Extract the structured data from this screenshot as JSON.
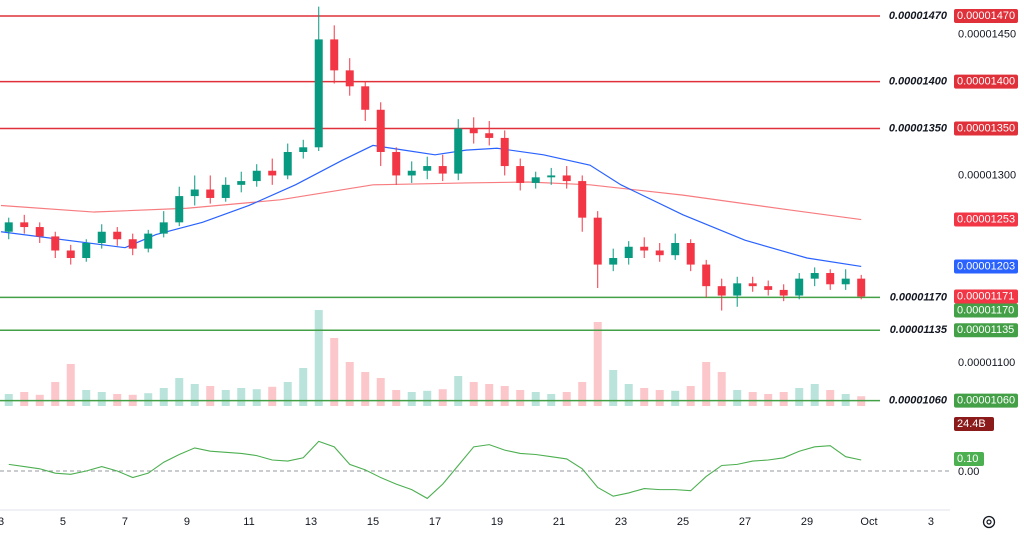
{
  "chart_data": {
    "type": "candlestick",
    "up_color": "#089981",
    "down_color": "#f23645",
    "xlim": [
      3,
      33.55
    ],
    "xticks": [
      3,
      5,
      7,
      9,
      11,
      13,
      15,
      17,
      19,
      21,
      23,
      25,
      27,
      29,
      {
        "value": 31,
        "label": "Oct"
      },
      {
        "value": 33,
        "label": "3"
      }
    ],
    "ylim": [
      1.05e-05,
      1.487e-05
    ],
    "yticks": [
      {
        "value": 1.45e-05,
        "label": "0.00001450"
      },
      {
        "value": 1.3e-05,
        "label": "0.00001300"
      },
      {
        "value": 1.1e-05,
        "label": "0.00001100"
      }
    ],
    "grid": false,
    "x": [
      3.25,
      3.75,
      4.25,
      4.75,
      5.25,
      5.75,
      6.25,
      6.75,
      7.25,
      7.75,
      8.25,
      8.75,
      9.25,
      9.75,
      10.25,
      10.75,
      11.25,
      11.75,
      12.25,
      12.75,
      13.25,
      13.75,
      14.25,
      14.75,
      15.25,
      15.75,
      16.25,
      16.75,
      17.25,
      17.75,
      18.25,
      18.75,
      19.25,
      19.75,
      20.25,
      20.75,
      21.25,
      21.75,
      22.25,
      22.75,
      23.25,
      23.75,
      24.25,
      24.75,
      25.25,
      25.75,
      26.25,
      26.75,
      27.25,
      27.75,
      28.25,
      28.75,
      29.25,
      29.75,
      30.25,
      30.75
    ],
    "open": [
      1.24e-05,
      1.25e-05,
      1.245e-05,
      1.235e-05,
      1.22e-05,
      1.212e-05,
      1.228e-05,
      1.24e-05,
      1.232e-05,
      1.222e-05,
      1.238e-05,
      1.25e-05,
      1.278e-05,
      1.285e-05,
      1.276e-05,
      1.29e-05,
      1.294e-05,
      1.305e-05,
      1.3e-05,
      1.325e-05,
      1.33e-05,
      1.445e-05,
      1.412e-05,
      1.395e-05,
      1.37e-05,
      1.325e-05,
      1.3e-05,
      1.305e-05,
      1.31e-05,
      1.302e-05,
      1.35e-05,
      1.345e-05,
      1.34e-05,
      1.31e-05,
      1.292e-05,
      1.298e-05,
      1.3e-05,
      1.294e-05,
      1.255e-05,
      1.205e-05,
      1.212e-05,
      1.224e-05,
      1.22e-05,
      1.215e-05,
      1.228e-05,
      1.205e-05,
      1.182e-05,
      1.172e-05,
      1.185e-05,
      1.182e-05,
      1.178e-05,
      1.172e-05,
      1.19e-05,
      1.196e-05,
      1.184e-05,
      1.19e-05
    ],
    "close": [
      1.25e-05,
      1.245e-05,
      1.235e-05,
      1.22e-05,
      1.212e-05,
      1.228e-05,
      1.24e-05,
      1.232e-05,
      1.222e-05,
      1.238e-05,
      1.25e-05,
      1.278e-05,
      1.285e-05,
      1.276e-05,
      1.29e-05,
      1.294e-05,
      1.305e-05,
      1.3e-05,
      1.325e-05,
      1.33e-05,
      1.445e-05,
      1.412e-05,
      1.395e-05,
      1.37e-05,
      1.325e-05,
      1.3e-05,
      1.305e-05,
      1.31e-05,
      1.302e-05,
      1.35e-05,
      1.345e-05,
      1.34e-05,
      1.31e-05,
      1.292e-05,
      1.298e-05,
      1.3e-05,
      1.294e-05,
      1.255e-05,
      1.205e-05,
      1.212e-05,
      1.224e-05,
      1.22e-05,
      1.215e-05,
      1.228e-05,
      1.205e-05,
      1.182e-05,
      1.172e-05,
      1.185e-05,
      1.182e-05,
      1.178e-05,
      1.172e-05,
      1.19e-05,
      1.196e-05,
      1.184e-05,
      1.19e-05,
      1.171e-05
    ],
    "high": [
      1.255e-05,
      1.258e-05,
      1.25e-05,
      1.24e-05,
      1.226e-05,
      1.232e-05,
      1.248e-05,
      1.245e-05,
      1.238e-05,
      1.242e-05,
      1.262e-05,
      1.288e-05,
      1.3e-05,
      1.3e-05,
      1.298e-05,
      1.304e-05,
      1.312e-05,
      1.318e-05,
      1.334e-05,
      1.338e-05,
      1.48e-05,
      1.46e-05,
      1.425e-05,
      1.4e-05,
      1.378e-05,
      1.33e-05,
      1.315e-05,
      1.32e-05,
      1.322e-05,
      1.36e-05,
      1.362e-05,
      1.358e-05,
      1.348e-05,
      1.318e-05,
      1.304e-05,
      1.308e-05,
      1.31e-05,
      1.3e-05,
      1.262e-05,
      1.222e-05,
      1.23e-05,
      1.234e-05,
      1.228e-05,
      1.238e-05,
      1.232e-05,
      1.21e-05,
      1.19e-05,
      1.192e-05,
      1.192e-05,
      1.188e-05,
      1.184e-05,
      1.196e-05,
      1.202e-05,
      1.2e-05,
      1.2e-05,
      1.194e-05
    ],
    "low": [
      1.232e-05,
      1.238e-05,
      1.228e-05,
      1.212e-05,
      1.205e-05,
      1.208e-05,
      1.222e-05,
      1.225e-05,
      1.215e-05,
      1.218e-05,
      1.234e-05,
      1.246e-05,
      1.268e-05,
      1.27e-05,
      1.272e-05,
      1.282e-05,
      1.288e-05,
      1.29e-05,
      1.296e-05,
      1.318e-05,
      1.326e-05,
      1.398e-05,
      1.385e-05,
      1.358e-05,
      1.31e-05,
      1.29e-05,
      1.292e-05,
      1.296e-05,
      1.294e-05,
      1.295e-05,
      1.334e-05,
      1.332e-05,
      1.3e-05,
      1.284e-05,
      1.286e-05,
      1.29e-05,
      1.286e-05,
      1.24e-05,
      1.18e-05,
      1.198e-05,
      1.205e-05,
      1.212e-05,
      1.208e-05,
      1.21e-05,
      1.198e-05,
      1.17e-05,
      1.156e-05,
      1.16e-05,
      1.176e-05,
      1.172e-05,
      1.166e-05,
      1.168e-05,
      1.182e-05,
      1.178e-05,
      1.178e-05,
      1.168e-05
    ],
    "last_label": "0.00001171",
    "levels": [
      {
        "value": 1.47e-05,
        "label": "0.00001470",
        "color": "#e0303a"
      },
      {
        "value": 1.4e-05,
        "label": "0.00001400",
        "color": "#e0303a"
      },
      {
        "value": 1.35e-05,
        "label": "0.00001350",
        "color": "#e0303a"
      },
      {
        "value": 1.17e-05,
        "label": "0.00001170",
        "color": "#43a047"
      },
      {
        "value": 1.135e-05,
        "label": "0.00001135",
        "color": "#43a047"
      },
      {
        "value": 1.06e-05,
        "label": "0.00001060",
        "color": "#43a047"
      }
    ],
    "overlays": [
      {
        "color": "#f77c80",
        "badge_color": "#f23645",
        "last_label": "0.00001253",
        "x": [
          3,
          6,
          9,
          12,
          15,
          18,
          20,
          22,
          25,
          28.5,
          30.75
        ],
        "values": [
          1.268e-05,
          1.261e-05,
          1.265e-05,
          1.274e-05,
          1.29e-05,
          1.292e-05,
          1.293e-05,
          1.29e-05,
          1.279e-05,
          1.263e-05,
          1.253e-05
        ]
      },
      {
        "color": "#2962ff",
        "badge_color": "#2962ff",
        "last_label": "0.00001203",
        "x": [
          3,
          7,
          8,
          9.5,
          11,
          12.5,
          14,
          15,
          16,
          17,
          18,
          19,
          20.5,
          22,
          23,
          25,
          27,
          29,
          30.75
        ],
        "values": [
          1.24e-05,
          1.223e-05,
          1.237e-05,
          1.25e-05,
          1.268e-05,
          1.29e-05,
          1.316e-05,
          1.332e-05,
          1.327e-05,
          1.322e-05,
          1.327e-05,
          1.329e-05,
          1.322e-05,
          1.311e-05,
          1.29e-05,
          1.258e-05,
          1.231e-05,
          1.212e-05,
          1.203e-05
        ]
      }
    ],
    "volume": {
      "ylim": [
        0,
        250
      ],
      "up_color": "rgba(8,153,129,0.28)",
      "down_color": "rgba(242,54,69,0.28)",
      "badge_color": "#8b1a1a",
      "last_label": "24.4B",
      "values": [
        30,
        35,
        28,
        60,
        105,
        40,
        35,
        30,
        28,
        32,
        45,
        70,
        55,
        50,
        40,
        45,
        42,
        48,
        60,
        95,
        240,
        170,
        110,
        85,
        70,
        40,
        35,
        38,
        42,
        75,
        60,
        55,
        50,
        40,
        35,
        30,
        35,
        60,
        210,
        90,
        55,
        45,
        40,
        38,
        50,
        110,
        85,
        40,
        35,
        30,
        35,
        45,
        55,
        40,
        30,
        24.4
      ]
    },
    "oscillator": {
      "color": "#4caf50",
      "ylim": [
        -0.31,
        0.51
      ],
      "yticks": [
        {
          "value": 0,
          "label": "0.00"
        }
      ],
      "last_label": "0.10",
      "values": [
        0.06,
        0.04,
        0.02,
        -0.02,
        -0.03,
        0,
        0.04,
        0,
        -0.06,
        -0.02,
        0.08,
        0.15,
        0.21,
        0.18,
        0.17,
        0.16,
        0.14,
        0.1,
        0.09,
        0.12,
        0.27,
        0.22,
        0.06,
        0.01,
        -0.06,
        -0.12,
        -0.17,
        -0.25,
        -0.12,
        0.05,
        0.22,
        0.24,
        0.19,
        0.16,
        0.15,
        0.13,
        0.11,
        0.02,
        -0.15,
        -0.23,
        -0.2,
        -0.16,
        -0.17,
        -0.17,
        -0.18,
        -0.05,
        0.05,
        0.06,
        0.09,
        0.1,
        0.12,
        0.18,
        0.22,
        0.23,
        0.13,
        0.1
      ]
    }
  }
}
